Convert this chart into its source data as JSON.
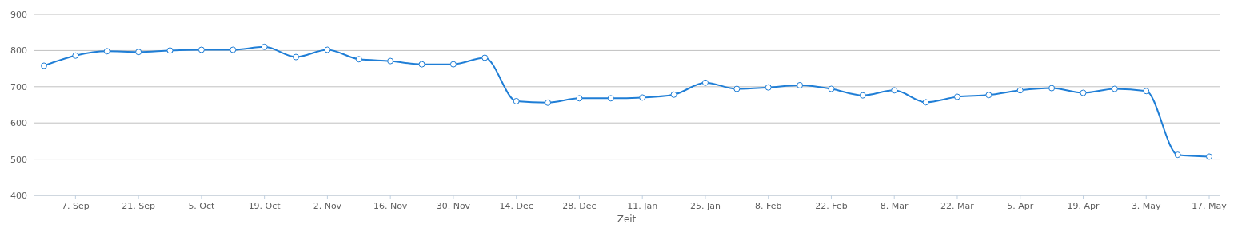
{
  "chart_data": {
    "type": "line",
    "xlabel": "Zeit",
    "categories": [
      null,
      "7. Sep",
      null,
      "21. Sep",
      null,
      "5. Oct",
      null,
      "19. Oct",
      null,
      "2. Nov",
      null,
      "16. Nov",
      null,
      "30. Nov",
      null,
      "14. Dec",
      null,
      "28. Dec",
      null,
      "11. Jan",
      null,
      "25. Jan",
      null,
      "8. Feb",
      null,
      "22. Feb",
      null,
      "8. Mar",
      null,
      "22. Mar",
      null,
      "5. Apr",
      null,
      "19. Apr",
      null,
      "3. May",
      null,
      "17. May"
    ],
    "series": [
      {
        "color": "#1f7ed6",
        "values": [
          758,
          786,
          798,
          796,
          800,
          802,
          802,
          810,
          782,
          802,
          776,
          771,
          762,
          762,
          780,
          660,
          656,
          668,
          668,
          670,
          678,
          711,
          694,
          698,
          704,
          694,
          676,
          690,
          657,
          672,
          677,
          690,
          696,
          683,
          694,
          688,
          512,
          507
        ]
      }
    ],
    "ylim": [
      400,
      900
    ],
    "yticks": [
      400,
      500,
      600,
      700,
      800,
      900
    ],
    "grid": "y",
    "marker": "circle",
    "line_style": "solid"
  }
}
